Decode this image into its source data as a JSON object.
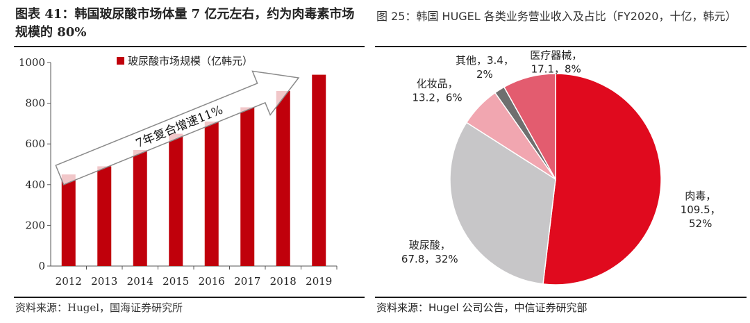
{
  "left": {
    "title": "图表 41：韩国玻尿酸市场体量 7 亿元左右，约为肉毒素市场规模的 80%",
    "source": "资料来源：Hugel，国海证券研究所"
  },
  "right": {
    "title": "图 25：韩国 HUGEL 各类业务营业收入及占比（FY2020，十亿，韩元）",
    "source": "资料来源：Hugel 公司公告，中信证券研究部"
  },
  "chart_data": [
    {
      "type": "bar",
      "categories": [
        "2012",
        "2013",
        "2014",
        "2015",
        "2016",
        "2017",
        "2018",
        "2019"
      ],
      "series": [
        {
          "name": "玻尿酸市场规模（亿韩元）",
          "values": [
            450,
            490,
            570,
            650,
            710,
            780,
            860,
            940
          ]
        }
      ],
      "ylim": [
        0,
        1000
      ],
      "yticks": [
        "0",
        "200",
        "400",
        "600",
        "800",
        "1000"
      ],
      "legend_position": "top",
      "annotation": "7年复合增速11%",
      "bar_color": "#c0000b"
    },
    {
      "type": "pie",
      "slices": [
        {
          "label_lines": [
            "肉毒，",
            "109.5，",
            "52%"
          ],
          "value": 109.5,
          "percent": 52,
          "color": "#e00a1e"
        },
        {
          "label_lines": [
            "玻尿酸，",
            "67.8，32%"
          ],
          "value": 67.8,
          "percent": 32,
          "color": "#c7c6c8"
        },
        {
          "label_lines": [
            "化妆品，",
            "13.2，6%"
          ],
          "value": 13.2,
          "percent": 6,
          "color": "#f1a6b0"
        },
        {
          "label_lines": [
            "其他，3.4，",
            "2%"
          ],
          "value": 3.4,
          "percent": 2,
          "color": "#6f6f6f"
        },
        {
          "label_lines": [
            "医疗器械，",
            "17.1，8%"
          ],
          "value": 17.1,
          "percent": 8,
          "color": "#e35c6f"
        }
      ]
    }
  ]
}
